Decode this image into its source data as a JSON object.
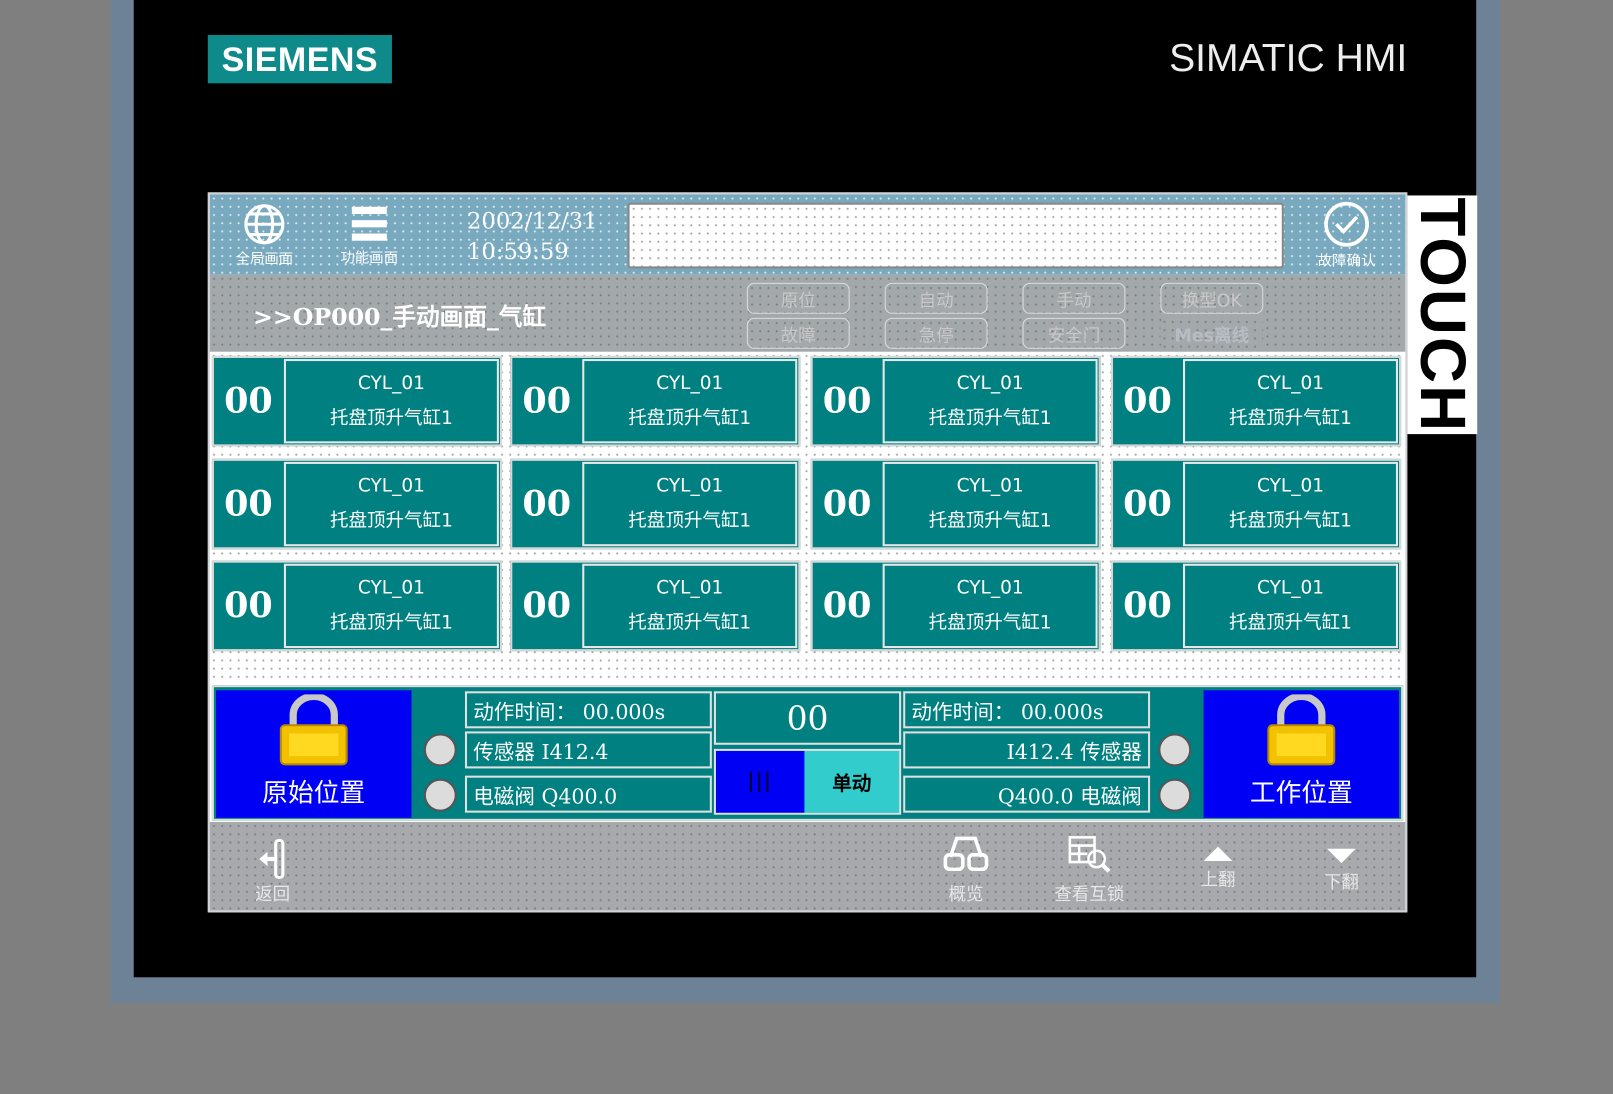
{
  "device": {
    "brand": "SIEMENS",
    "model": "SIMATIC HMI",
    "bezel_label": "TOUCH"
  },
  "colors": {
    "header": "#78a9bf",
    "toolbar": "#a3a8ab",
    "cell": "#008080",
    "position_button": "#0000f5",
    "single_mode": "#33cccc",
    "lamp_off": "#dcdcdc"
  },
  "header": {
    "global_screen": {
      "label": "全局画面",
      "icon": "globe-icon"
    },
    "function_screen": {
      "label": "功能画面",
      "icon": "menu-icon"
    },
    "date": "2002/12/31",
    "time": "10:59:59",
    "alarm_text": "",
    "ack": {
      "label": "故障确认",
      "icon": "check-circle-icon"
    }
  },
  "screen_title": ">>OP000_手动画面_气缸",
  "status_buttons": [
    "原位",
    "自动",
    "手动",
    "换型OK",
    "故障",
    "急停",
    "安全门",
    "Mes离线"
  ],
  "cylinders": [
    {
      "num": "00",
      "id": "CYL_01",
      "name": "托盘顶升气缸1"
    },
    {
      "num": "00",
      "id": "CYL_01",
      "name": "托盘顶升气缸1"
    },
    {
      "num": "00",
      "id": "CYL_01",
      "name": "托盘顶升气缸1"
    },
    {
      "num": "00",
      "id": "CYL_01",
      "name": "托盘顶升气缸1"
    },
    {
      "num": "00",
      "id": "CYL_01",
      "name": "托盘顶升气缸1"
    },
    {
      "num": "00",
      "id": "CYL_01",
      "name": "托盘顶升气缸1"
    },
    {
      "num": "00",
      "id": "CYL_01",
      "name": "托盘顶升气缸1"
    },
    {
      "num": "00",
      "id": "CYL_01",
      "name": "托盘顶升气缸1"
    },
    {
      "num": "00",
      "id": "CYL_01",
      "name": "托盘顶升气缸1"
    },
    {
      "num": "00",
      "id": "CYL_01",
      "name": "托盘顶升气缸1"
    },
    {
      "num": "00",
      "id": "CYL_01",
      "name": "托盘顶升气缸1"
    },
    {
      "num": "00",
      "id": "CYL_01",
      "name": "托盘顶升气缸1"
    }
  ],
  "detail": {
    "home_label": "原始位置",
    "work_label": "工作位置",
    "left_time": "动作时间： 00.000s",
    "right_time": "动作时间： 00.000s",
    "left_sensor": "传感器 I412.4",
    "right_sensor": "I412.4 传感器",
    "left_valve": "电磁阀 Q400.0",
    "right_valve": "Q400.0 电磁阀",
    "number": "00",
    "mode_label": "单动"
  },
  "footer": {
    "back": "返回",
    "overview": "概览",
    "interlock": "查看互锁",
    "page_up": "上翻",
    "page_down": "下翻"
  }
}
